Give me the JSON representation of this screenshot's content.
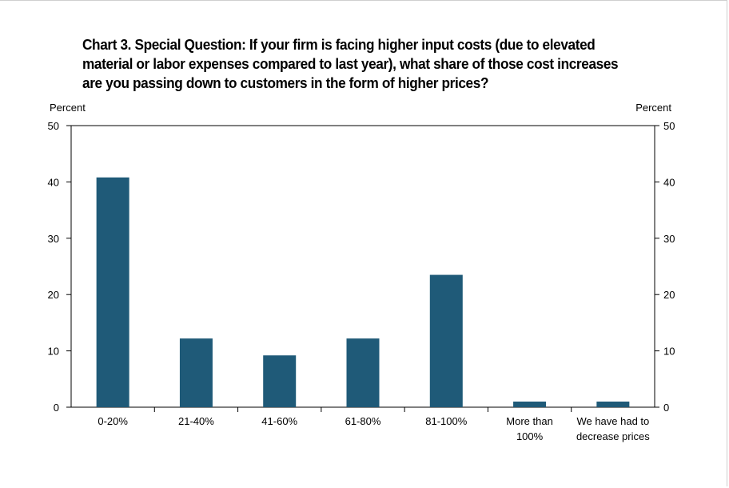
{
  "chart_data": {
    "type": "bar",
    "title_lines": [
      "Chart 3. Special Question: If your firm is facing higher input costs (due to elevated",
      "material or labor expenses compared to last year), what share of those cost increases",
      "are you passing down to customers in the form of higher prices?"
    ],
    "ylabel_left": "Percent",
    "ylabel_right": "Percent",
    "ylim": [
      0,
      50
    ],
    "yticks": [
      0,
      10,
      20,
      30,
      40,
      50
    ],
    "categories": [
      [
        "0-20%"
      ],
      [
        "21-40%"
      ],
      [
        "41-60%"
      ],
      [
        "61-80%"
      ],
      [
        "81-100%"
      ],
      [
        "More than",
        "100%"
      ],
      [
        "We have had to",
        "decrease prices"
      ]
    ],
    "values": [
      40.8,
      12.2,
      9.2,
      12.2,
      23.5,
      1.0,
      1.0
    ],
    "bar_color": "#1f5a78",
    "grid": false
  }
}
